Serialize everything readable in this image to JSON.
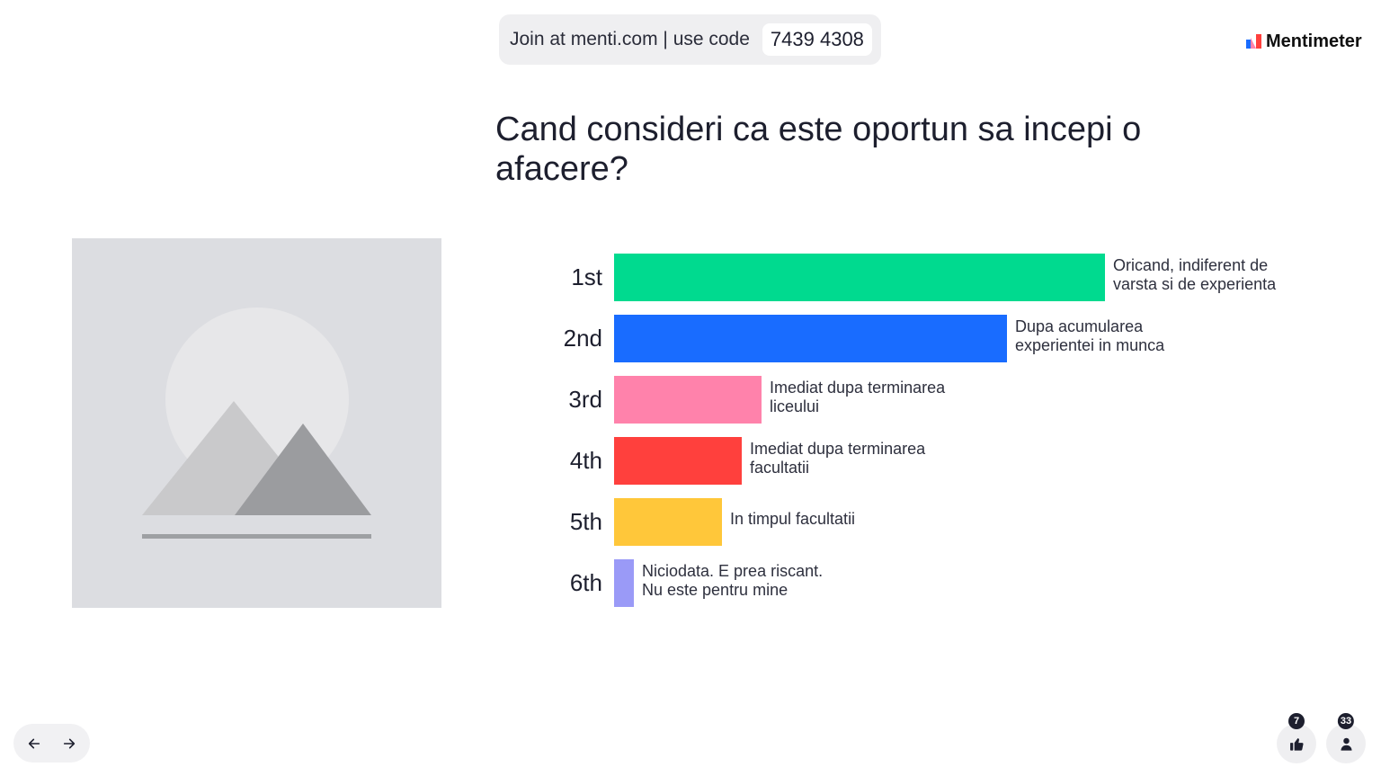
{
  "header": {
    "join_text": "Join at menti.com | use code",
    "join_code": "7439 4308",
    "brand": "Mentimeter",
    "brand_icon": "mentimeter-logo-icon"
  },
  "slide": {
    "question": "Cand consideri ca este oportun sa incepi o afacere?",
    "image_icon": "image-placeholder-icon"
  },
  "ranking": {
    "type": "ranking",
    "items": [
      {
        "rank": "1st",
        "answer": "Oricand, indiferent de varsta si de experienta",
        "color": "#00da8f",
        "level": 1.0
      },
      {
        "rank": "2nd",
        "answer": "Dupa acumularea experientei in munca",
        "color": "#196cff",
        "level": 0.8
      },
      {
        "rank": "3rd",
        "answer": "Imediat dupa terminarea liceului",
        "color": "#ff82ab",
        "level": 0.3
      },
      {
        "rank": "4th",
        "answer": "Imediat dupa terminarea facultatii",
        "color": "#ff403d",
        "level": 0.26
      },
      {
        "rank": "5th",
        "answer": "In timpul facultatii",
        "color": "#ffc73a",
        "level": 0.22
      },
      {
        "rank": "6th",
        "answer": "Niciodata. E prea riscant. Nu este pentru mine",
        "color": "#9a9af7",
        "level": 0.04
      }
    ]
  },
  "footer": {
    "prev_icon": "arrow-left-icon",
    "next_icon": "arrow-right-icon",
    "reactions_icon": "thumbs-up-icon",
    "reactions_count": "7",
    "participants_icon": "person-icon",
    "participants_count": "33"
  }
}
